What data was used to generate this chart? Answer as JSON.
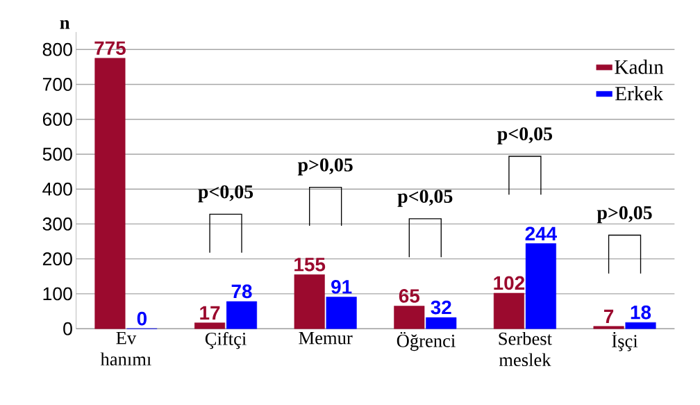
{
  "chart_data": {
    "type": "bar",
    "ylabel": "n",
    "categories": [
      "Ev hanımı",
      "Çiftçi",
      "Memur",
      "Öğrenci",
      "Serbest meslek",
      "İşçi"
    ],
    "series": [
      {
        "name": "Kadın",
        "color": "#9b0a2e",
        "values": [
          775,
          17,
          155,
          65,
          102,
          7
        ]
      },
      {
        "name": "Erkek",
        "color": "#0000ff",
        "values": [
          0,
          78,
          91,
          32,
          244,
          18
        ]
      }
    ],
    "ylim": [
      0,
      850
    ],
    "yticks": [
      0,
      100,
      200,
      300,
      400,
      500,
      600,
      700,
      800
    ],
    "grid": "y",
    "legend": "top right",
    "data_labels": true,
    "annotations": [
      "p<0,05",
      "p>0,05",
      "p<0,05",
      "p<0,05",
      "p>0,05"
    ]
  }
}
